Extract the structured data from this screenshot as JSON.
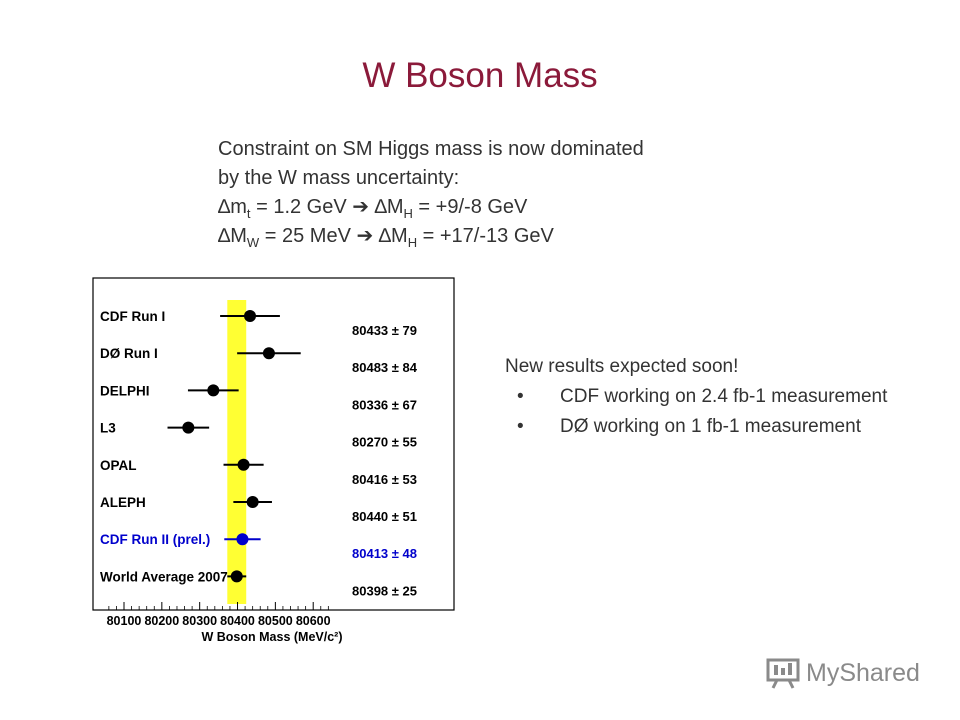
{
  "title": "W Boson Mass",
  "intro": {
    "line1": "Constraint on SM Higgs mass is now dominated",
    "line2": "by the W mass uncertainty:",
    "line3": {
      "delta1": "∆m",
      "sub1": "t",
      "eq1": " =   1.2 GeV ",
      "arrow": "➔",
      "delta2": " ∆M",
      "sub2": "H",
      "eq2": " = +9/-8 GeV"
    },
    "line4": {
      "delta1": "∆M",
      "sub1": "W",
      "eq1": " =   25 MeV ",
      "arrow": "➔",
      "delta2": " ∆M",
      "sub2": "H",
      "eq2": " = +17/-13 GeV"
    }
  },
  "side_note": {
    "heading": "New results expected soon!",
    "bullets": [
      "CDF working on 2.4 fb-1 measurement",
      "DØ working on 1 fb-1 measurement"
    ]
  },
  "logo": {
    "text": "MyShared"
  },
  "chart_data": {
    "type": "scatter",
    "xlabel": "W Boson Mass (MeV/c²)",
    "xlim": [
      80050,
      80650
    ],
    "xticks": [
      80100,
      80200,
      80300,
      80400,
      80500,
      80600
    ],
    "band": [
      80373,
      80423
    ],
    "colors": {
      "band": "#ffff33",
      "points": "#000000",
      "highlight": "#0000cc"
    },
    "measurements": [
      {
        "label": "CDF Run I",
        "value": 80433,
        "error": 79,
        "value_text": "80433 ± 79",
        "highlight": false
      },
      {
        "label": "DØ Run I",
        "value": 80483,
        "error": 84,
        "value_text": "80483 ± 84",
        "highlight": false
      },
      {
        "label": "DELPHI",
        "value": 80336,
        "error": 67,
        "value_text": "80336 ± 67",
        "highlight": false
      },
      {
        "label": "L3",
        "value": 80270,
        "error": 55,
        "value_text": "80270 ± 55",
        "highlight": false
      },
      {
        "label": "OPAL",
        "value": 80416,
        "error": 53,
        "value_text": "80416 ± 53",
        "highlight": false
      },
      {
        "label": "ALEPH",
        "value": 80440,
        "error": 51,
        "value_text": "80440 ± 51",
        "highlight": false
      },
      {
        "label": "CDF Run II (prel.)",
        "value": 80413,
        "error": 48,
        "value_text": "80413 ± 48",
        "highlight": true
      },
      {
        "label": "World Average 2007",
        "value": 80398,
        "error": 25,
        "value_text": "80398 ± 25",
        "highlight": false
      }
    ]
  }
}
